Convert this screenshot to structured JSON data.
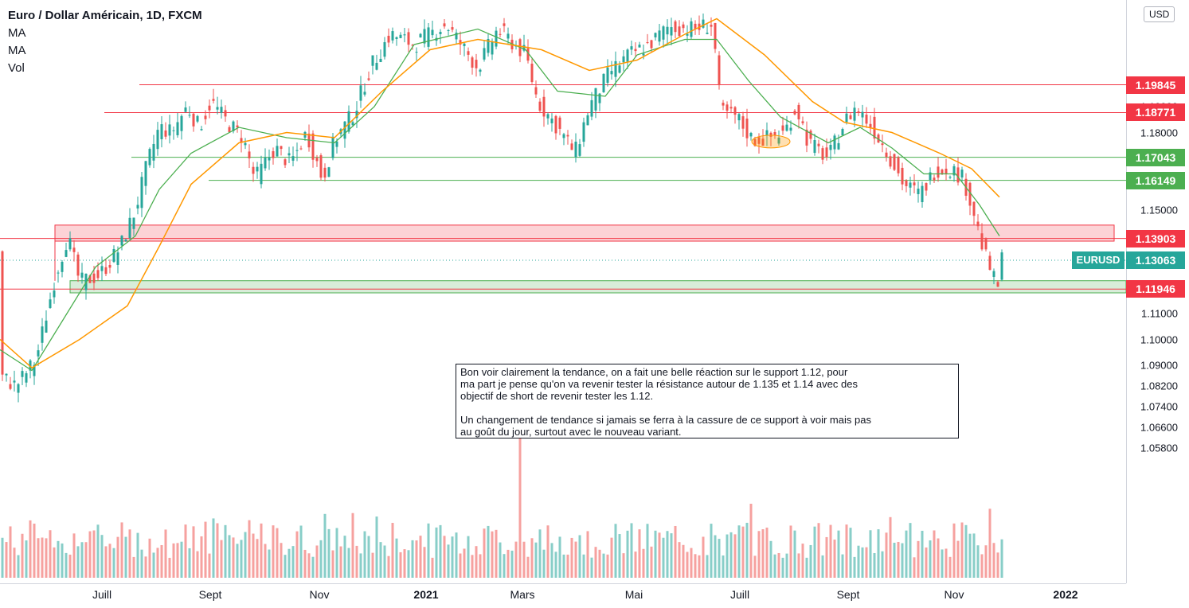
{
  "chart_data": {
    "type": "candlestick",
    "title": "Euro / Dollar Américain, 1D, FXCM",
    "indicators": [
      "MA",
      "MA",
      "Vol"
    ],
    "currency": "USD",
    "symbol": "EURUSD",
    "last_price": "1.13063",
    "ylim": [
      1.052,
      1.214
    ],
    "y_ticks": [
      "1.05800",
      "1.06600",
      "1.07400",
      "1.08200",
      "1.09000",
      "1.10000",
      "1.11000",
      "1.15000",
      "1.18000",
      "1.19000"
    ],
    "x_ticks": [
      "Juill",
      "Sept",
      "Nov",
      "2021",
      "Mars",
      "Mai",
      "Juill",
      "Sept",
      "Nov",
      "2022"
    ],
    "levels": [
      {
        "label": "1.19845",
        "value": 1.19845,
        "color": "#f23645"
      },
      {
        "label": "1.18771",
        "value": 1.18771,
        "color": "#f23645"
      },
      {
        "label": "1.17043",
        "value": 1.17043,
        "color": "#4caf50"
      },
      {
        "label": "1.16149",
        "value": 1.16149,
        "color": "#4caf50"
      },
      {
        "label": "1.13903",
        "value": 1.13903,
        "color": "#f23645"
      },
      {
        "label": "1.11946",
        "value": 1.11946,
        "color": "#f23645"
      }
    ],
    "zones": [
      {
        "name": "resistance",
        "from": 1.138,
        "to": 1.1442,
        "color": "#f23645"
      },
      {
        "name": "support",
        "from": 1.118,
        "to": 1.1227,
        "color": "#4caf50"
      }
    ],
    "price_path": [
      [
        0,
        1.086
      ],
      [
        20,
        1.082
      ],
      [
        45,
        1.092
      ],
      [
        70,
        1.125
      ],
      [
        85,
        1.14
      ],
      [
        100,
        1.122
      ],
      [
        125,
        1.125
      ],
      [
        150,
        1.135
      ],
      [
        170,
        1.15
      ],
      [
        185,
        1.168
      ],
      [
        200,
        1.182
      ],
      [
        215,
        1.18
      ],
      [
        235,
        1.19
      ],
      [
        250,
        1.182
      ],
      [
        265,
        1.192
      ],
      [
        285,
        1.184
      ],
      [
        305,
        1.178
      ],
      [
        320,
        1.162
      ],
      [
        345,
        1.174
      ],
      [
        365,
        1.168
      ],
      [
        385,
        1.18
      ],
      [
        405,
        1.162
      ],
      [
        420,
        1.177
      ],
      [
        445,
        1.188
      ],
      [
        465,
        1.205
      ],
      [
        490,
        1.218
      ],
      [
        520,
        1.214
      ],
      [
        560,
        1.222
      ],
      [
        600,
        1.205
      ],
      [
        625,
        1.22
      ],
      [
        660,
        1.21
      ],
      [
        675,
        1.192
      ],
      [
        700,
        1.182
      ],
      [
        722,
        1.172
      ],
      [
        740,
        1.19
      ],
      [
        765,
        1.203
      ],
      [
        790,
        1.21
      ],
      [
        815,
        1.214
      ],
      [
        840,
        1.221
      ],
      [
        870,
        1.22
      ],
      [
        895,
        1.222
      ],
      [
        905,
        1.188
      ],
      [
        925,
        1.186
      ],
      [
        945,
        1.177
      ],
      [
        965,
        1.178
      ],
      [
        985,
        1.18
      ],
      [
        1000,
        1.19
      ],
      [
        1015,
        1.176
      ],
      [
        1040,
        1.17
      ],
      [
        1060,
        1.184
      ],
      [
        1075,
        1.19
      ],
      [
        1095,
        1.182
      ],
      [
        1115,
        1.172
      ],
      [
        1135,
        1.16
      ],
      [
        1155,
        1.156
      ],
      [
        1175,
        1.166
      ],
      [
        1195,
        1.166
      ],
      [
        1210,
        1.162
      ],
      [
        1222,
        1.15
      ],
      [
        1235,
        1.134
      ],
      [
        1245,
        1.126
      ],
      [
        1252,
        1.119
      ],
      [
        1258,
        1.131
      ]
    ],
    "ma_green": [
      [
        0,
        1.096
      ],
      [
        40,
        1.088
      ],
      [
        80,
        1.108
      ],
      [
        120,
        1.128
      ],
      [
        170,
        1.14
      ],
      [
        200,
        1.158
      ],
      [
        240,
        1.172
      ],
      [
        300,
        1.182
      ],
      [
        360,
        1.178
      ],
      [
        420,
        1.176
      ],
      [
        470,
        1.19
      ],
      [
        520,
        1.214
      ],
      [
        600,
        1.22
      ],
      [
        660,
        1.212
      ],
      [
        700,
        1.196
      ],
      [
        760,
        1.194
      ],
      [
        800,
        1.21
      ],
      [
        860,
        1.216
      ],
      [
        900,
        1.216
      ],
      [
        940,
        1.2
      ],
      [
        980,
        1.186
      ],
      [
        1040,
        1.176
      ],
      [
        1080,
        1.182
      ],
      [
        1120,
        1.174
      ],
      [
        1160,
        1.164
      ],
      [
        1200,
        1.164
      ],
      [
        1230,
        1.152
      ],
      [
        1255,
        1.14
      ]
    ],
    "ma_orange": [
      [
        0,
        1.1
      ],
      [
        40,
        1.089
      ],
      [
        100,
        1.1
      ],
      [
        160,
        1.113
      ],
      [
        200,
        1.136
      ],
      [
        240,
        1.16
      ],
      [
        300,
        1.176
      ],
      [
        360,
        1.18
      ],
      [
        420,
        1.178
      ],
      [
        480,
        1.196
      ],
      [
        540,
        1.212
      ],
      [
        600,
        1.216
      ],
      [
        680,
        1.212
      ],
      [
        740,
        1.204
      ],
      [
        800,
        1.208
      ],
      [
        860,
        1.218
      ],
      [
        900,
        1.224
      ],
      [
        960,
        1.21
      ],
      [
        1020,
        1.192
      ],
      [
        1060,
        1.184
      ],
      [
        1120,
        1.18
      ],
      [
        1180,
        1.172
      ],
      [
        1220,
        1.166
      ],
      [
        1255,
        1.155
      ]
    ],
    "ellipse_marker": {
      "x": 968,
      "value": 1.1765
    },
    "volume_spike_x": 651
  },
  "annotation": {
    "text": "Bon voir clairement la tendance, on a fait une belle réaction sur le support 1.12, pour\nma part je pense qu'on va revenir tester la résistance autour de 1.135 et 1.14 avec des\nobjectif de short de revenir tester les 1.12.\n\nUn changement de tendance si jamais se ferra à la cassure de ce support à voir mais pas\nau goût du jour, surtout avec le nouveau variant."
  },
  "colors": {
    "up": "#26a69a",
    "down": "#ef5350",
    "ma_fast": "#4caf50",
    "ma_slow": "#ff9800",
    "red_line": "#f23645",
    "green_line": "#4caf50"
  }
}
